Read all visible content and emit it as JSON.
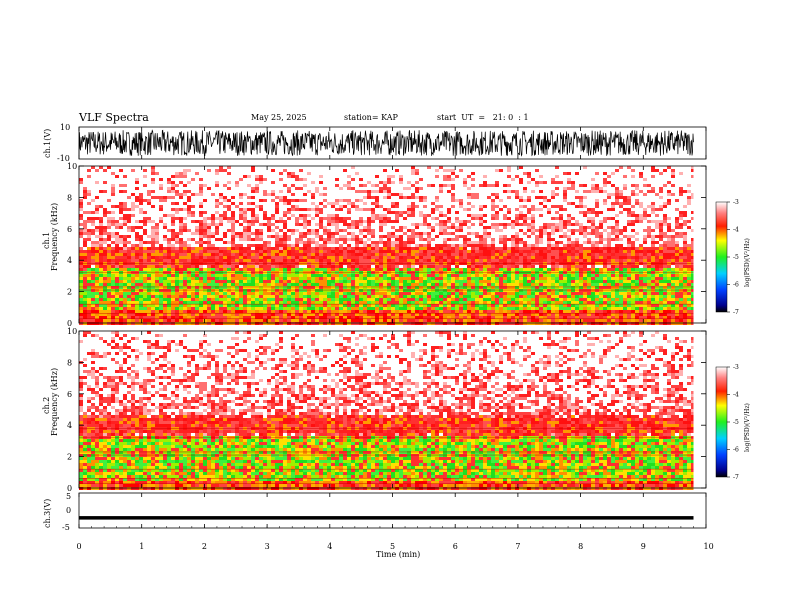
{
  "header": {
    "title": "VLF Spectra",
    "date": "May 25, 2025",
    "station": "station= KAP",
    "start": "start  UT  =   21: 0  : 1"
  },
  "colors": {
    "spec_red": "#ff2a2a",
    "spec_orange": "#ffa000",
    "spec_yellow": "#ffe000",
    "spec_green": "#30f030"
  },
  "chart_data": [
    {
      "type": "line",
      "name": "ch1-waveform",
      "ylabel": "ch.1(V)",
      "yticks": [
        "10",
        "-10"
      ],
      "ylim": [
        -10,
        10
      ],
      "xlim": [
        0,
        10
      ],
      "note": "dense random oscillation spanning roughly -8 to 8 V over 0-9.8 min"
    },
    {
      "type": "heatmap",
      "name": "ch1-spectrogram",
      "ylabel_top": "ch.1",
      "ylabel": "Frequency  (kHz)",
      "yticks": [
        "0",
        "2",
        "4",
        "6",
        "8",
        "10"
      ],
      "ylim": [
        0,
        10
      ],
      "xlim": [
        0,
        9.8
      ],
      "bands": [
        {
          "from": 0,
          "to": 0.9,
          "level": "red"
        },
        {
          "from": 0.9,
          "to": 3.6,
          "level": "green"
        },
        {
          "from": 3.6,
          "to": 5.0,
          "level": "red-dense"
        },
        {
          "from": 5.0,
          "to": 10,
          "level": "red-sparse"
        }
      ],
      "colorbar": {
        "label": "log(PSD)(V²/Hz)",
        "ticks": [
          "-3",
          "-4",
          "-5",
          "-6",
          "-7"
        ],
        "range": [
          -7,
          -3
        ]
      }
    },
    {
      "type": "heatmap",
      "name": "ch2-spectrogram",
      "ylabel_top": "ch.2",
      "ylabel": "Frequency  (kHz)",
      "yticks": [
        "0",
        "2",
        "4",
        "6",
        "8",
        "10"
      ],
      "ylim": [
        0,
        10
      ],
      "xlim": [
        0,
        9.8
      ],
      "bands": [
        {
          "from": 0,
          "to": 0.6,
          "level": "red"
        },
        {
          "from": 0.6,
          "to": 3.4,
          "level": "green"
        },
        {
          "from": 3.4,
          "to": 4.8,
          "level": "red-dense"
        },
        {
          "from": 4.8,
          "to": 10,
          "level": "red-sparse"
        }
      ],
      "colorbar": {
        "label": "log(PSD)(V²/Hz)",
        "ticks": [
          "-3",
          "-4",
          "-5",
          "-6",
          "-7"
        ],
        "range": [
          -7,
          -3
        ]
      }
    },
    {
      "type": "line",
      "name": "ch3-waveform",
      "ylabel": "ch.3(V)",
      "yticks": [
        "5",
        "0",
        "-5"
      ],
      "ylim": [
        -5,
        5
      ],
      "xlim": [
        0,
        10
      ],
      "note": "narrow band around -2 V"
    }
  ],
  "xaxis": {
    "label": "Time  (min)",
    "ticks": [
      "0",
      "1",
      "2",
      "3",
      "4",
      "5",
      "6",
      "7",
      "8",
      "9",
      "10"
    ],
    "range": [
      0,
      10
    ]
  }
}
